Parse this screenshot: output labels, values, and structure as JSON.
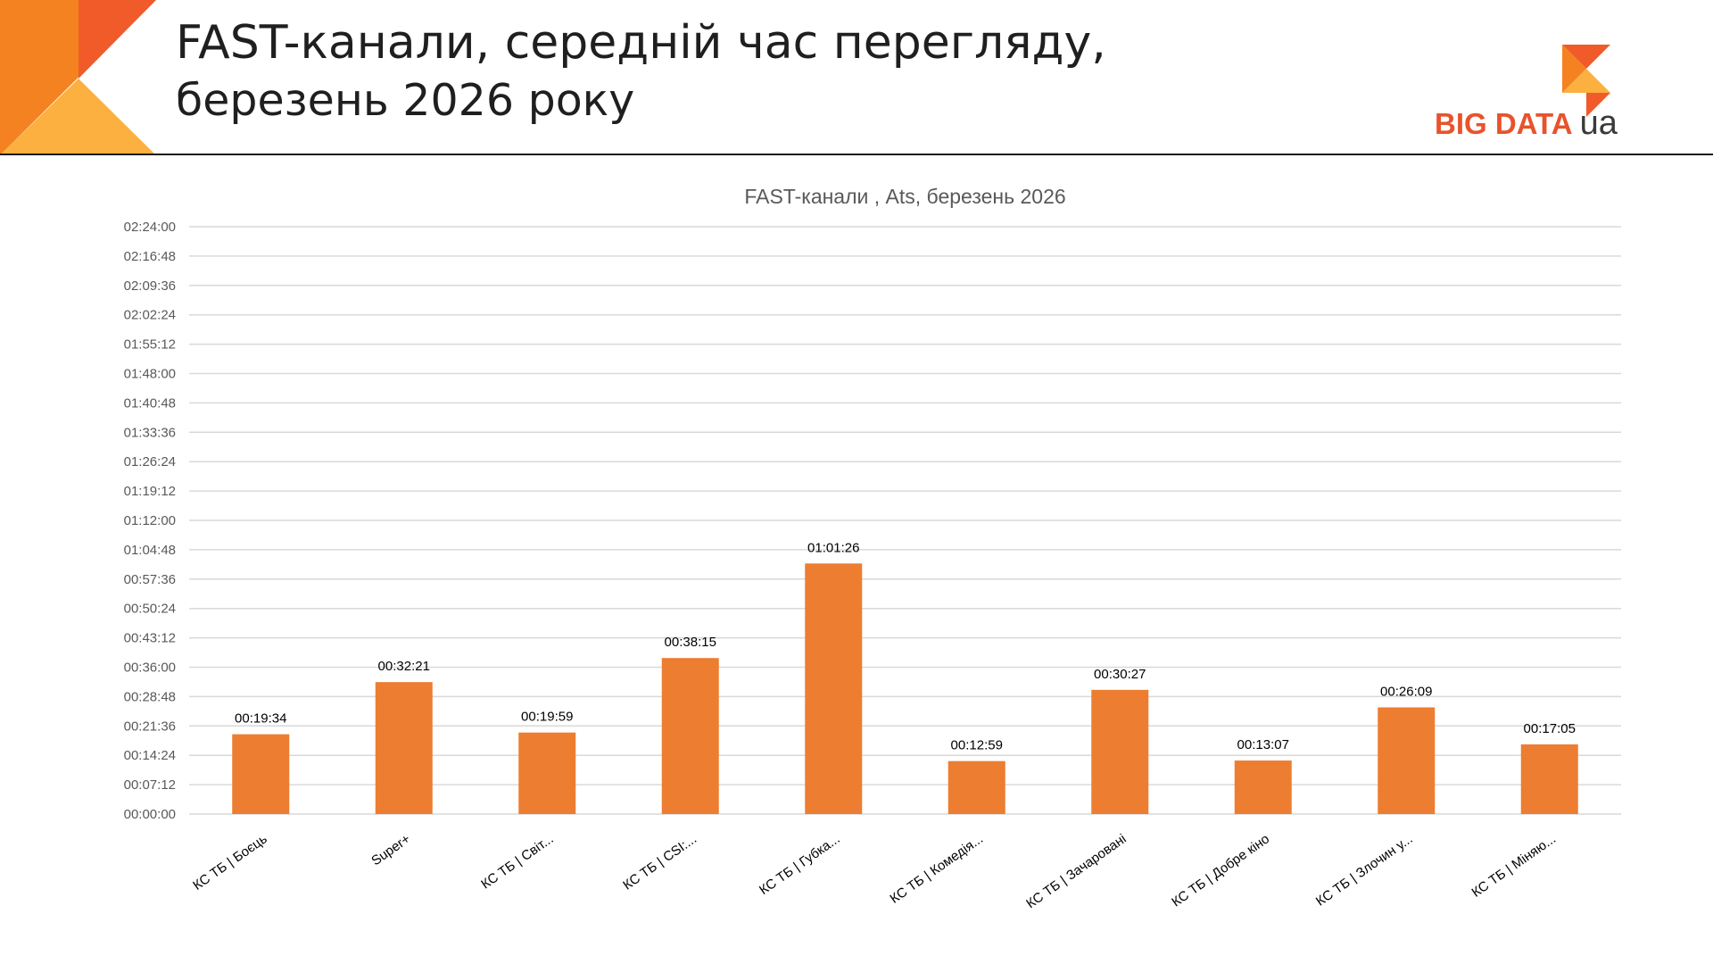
{
  "header": {
    "title_line1": "FAST-канали, середній час перегляду,",
    "title_line2": "березень 2026 року",
    "logo_text": "BIG DATA",
    "logo_suffix": "ua"
  },
  "colors": {
    "bar": "#ed7d31",
    "grid": "#d9d9d9",
    "accent_dark": "#f15a29",
    "accent_light": "#fbb040"
  },
  "chart_data": {
    "type": "bar",
    "title": "FAST-канали , Ats, березень 2026",
    "xlabel": "",
    "ylabel": "",
    "ylim": [
      "00:00:00",
      "02:24:00"
    ],
    "y_ticks": [
      "00:00:00",
      "00:07:12",
      "00:14:24",
      "00:21:36",
      "00:28:48",
      "00:36:00",
      "00:43:12",
      "00:50:24",
      "00:57:36",
      "01:04:48",
      "01:12:00",
      "01:19:12",
      "01:26:24",
      "01:33:36",
      "01:40:48",
      "01:48:00",
      "01:55:12",
      "02:02:24",
      "02:09:36",
      "02:16:48",
      "02:24:00"
    ],
    "grid": true,
    "legend": "none",
    "categories": [
      "КС ТБ | Боєць",
      "Super+",
      "КС ТБ | Світ...",
      "КС ТБ | CSI:...",
      "КС ТБ | Губка...",
      "КС ТБ | Комедія...",
      "КС ТБ | Зачаровані",
      "КС ТБ | Добре кіно",
      "КС ТБ | Злочин у...",
      "КС ТБ | Міняю..."
    ],
    "values": [
      "00:19:34",
      "00:32:21",
      "00:19:59",
      "00:38:15",
      "01:01:26",
      "00:12:59",
      "00:30:27",
      "00:13:07",
      "00:26:09",
      "00:17:05"
    ]
  }
}
